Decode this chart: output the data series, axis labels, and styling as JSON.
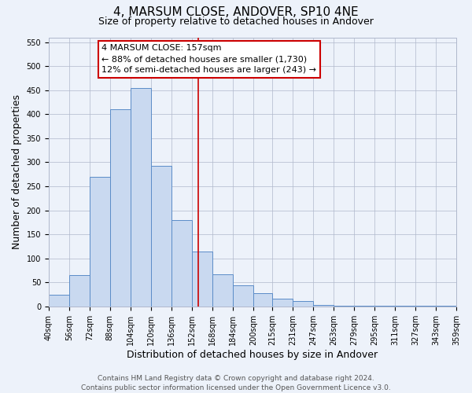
{
  "title": "4, MARSUM CLOSE, ANDOVER, SP10 4NE",
  "subtitle": "Size of property relative to detached houses in Andover",
  "xlabel": "Distribution of detached houses by size in Andover",
  "ylabel": "Number of detached properties",
  "bar_edges": [
    40,
    56,
    72,
    88,
    104,
    120,
    136,
    152,
    168,
    184,
    200,
    215,
    231,
    247,
    263,
    279,
    295,
    311,
    327,
    343,
    359
  ],
  "bar_heights": [
    25,
    65,
    270,
    410,
    455,
    293,
    180,
    115,
    67,
    44,
    27,
    16,
    11,
    3,
    2,
    1,
    1,
    1,
    1,
    1
  ],
  "bar_facecolor": "#c9d9f0",
  "bar_edgecolor": "#5b8cc8",
  "reference_line_x": 157,
  "reference_line_color": "#cc0000",
  "ylim": [
    0,
    560
  ],
  "yticks": [
    0,
    50,
    100,
    150,
    200,
    250,
    300,
    350,
    400,
    450,
    500,
    550
  ],
  "xtick_labels": [
    "40sqm",
    "56sqm",
    "72sqm",
    "88sqm",
    "104sqm",
    "120sqm",
    "136sqm",
    "152sqm",
    "168sqm",
    "184sqm",
    "200sqm",
    "215sqm",
    "231sqm",
    "247sqm",
    "263sqm",
    "279sqm",
    "295sqm",
    "311sqm",
    "327sqm",
    "343sqm",
    "359sqm"
  ],
  "annotation_title": "4 MARSUM CLOSE: 157sqm",
  "annotation_line1": "← 88% of detached houses are smaller (1,730)",
  "annotation_line2": "12% of semi-detached houses are larger (243) →",
  "footer_line1": "Contains HM Land Registry data © Crown copyright and database right 2024.",
  "footer_line2": "Contains public sector information licensed under the Open Government Licence v3.0.",
  "bg_color": "#edf2fa",
  "plot_bg_color": "#edf2fa",
  "title_fontsize": 11,
  "subtitle_fontsize": 9,
  "axis_label_fontsize": 9,
  "tick_fontsize": 7,
  "footer_fontsize": 6.5,
  "annotation_fontsize": 8
}
